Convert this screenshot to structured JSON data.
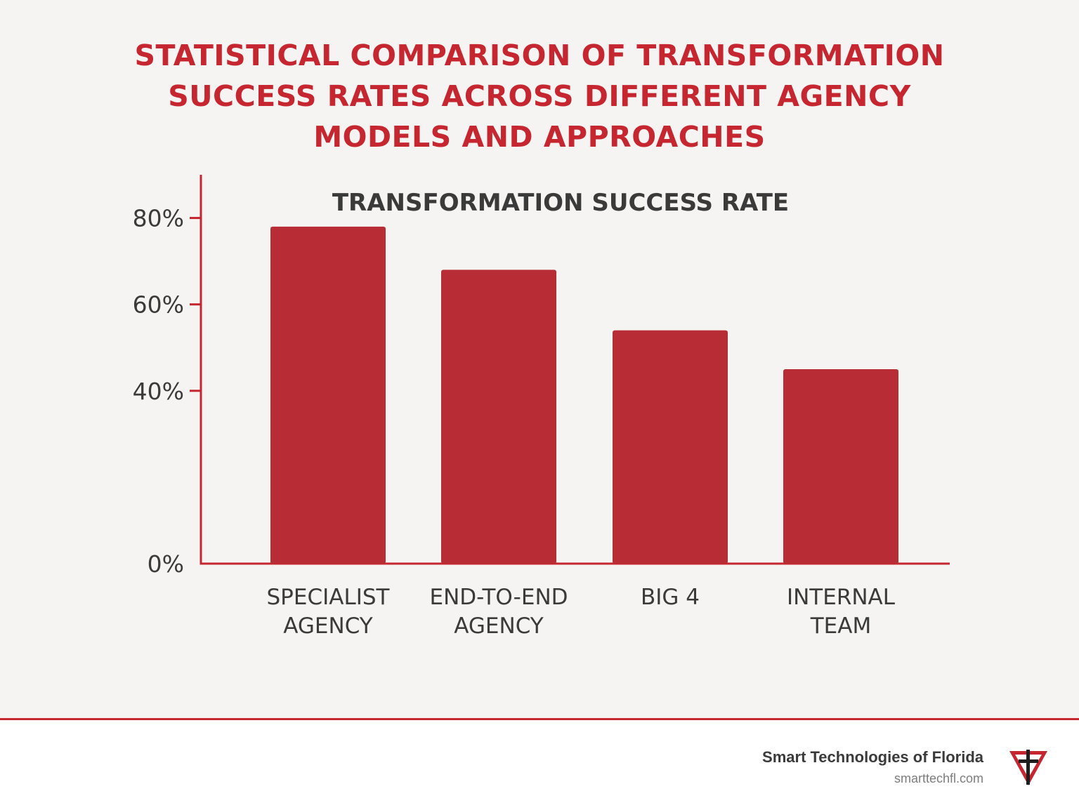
{
  "page": {
    "title_lines": [
      "STATISTICAL COMPARISON OF TRANSFORMATION",
      "SUCCESS RATES ACROSS DIFFERENT AGENCY",
      "MODELS AND APPROACHES"
    ]
  },
  "chart_data": {
    "type": "bar",
    "title": "TRANSFORMATION SUCCESS RATE",
    "categories": [
      [
        "SPECIALIST",
        "AGENCY"
      ],
      [
        "END-TO-END",
        "AGENCY"
      ],
      [
        "BIG 4"
      ],
      [
        "INTERNAL",
        "TEAM"
      ]
    ],
    "values": [
      78,
      68,
      54,
      45
    ],
    "ylim": [
      0,
      90
    ],
    "y_ticks": [
      {
        "value": 80,
        "label": "80%"
      },
      {
        "value": 60,
        "label": "60%"
      },
      {
        "value": 40,
        "label": "40%"
      },
      {
        "value": 0,
        "label": "0%"
      }
    ],
    "xlabel": "",
    "ylabel": "",
    "grid": false,
    "bar_color": "#b82d35",
    "axis_color": "#c5262f"
  },
  "footer": {
    "company": "Smart Technologies of Florida",
    "url": "smarttechfl.com"
  },
  "colors": {
    "accent": "#c5262f",
    "bar": "#b82d35",
    "text": "#3a3a3a",
    "background": "#f5f4f2"
  }
}
